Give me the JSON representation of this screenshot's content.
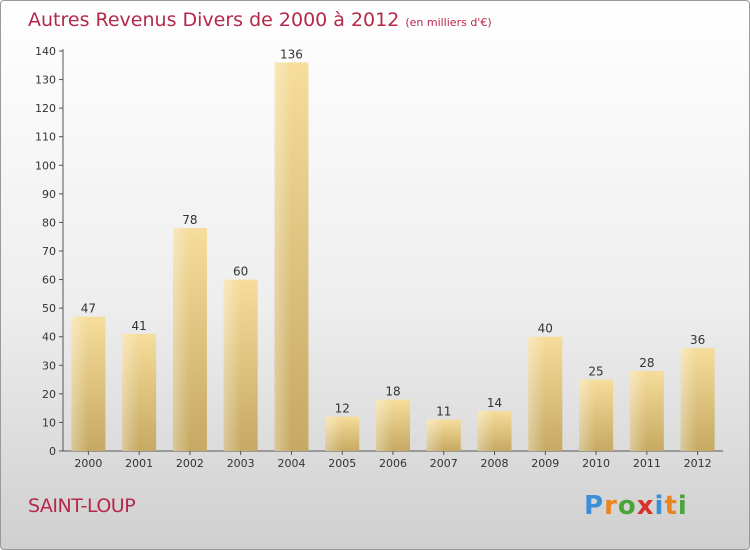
{
  "title": "Autres Revenus Divers de 2000 à 2012",
  "subtitle": "(en milliers d'€)",
  "commune": "SAINT-LOUP",
  "logo": "Proxiti",
  "colors": {
    "title": "#b5284a",
    "bar_light": "#f5dc9a",
    "bar_dark": "#c9ad66",
    "axis": "#555555"
  },
  "chart_data": {
    "type": "bar",
    "categories": [
      "2000",
      "2001",
      "2002",
      "2003",
      "2004",
      "2005",
      "2006",
      "2007",
      "2008",
      "2009",
      "2010",
      "2011",
      "2012"
    ],
    "values": [
      47,
      41,
      78,
      60,
      136,
      12,
      18,
      11,
      14,
      40,
      25,
      28,
      36
    ],
    "ylim": [
      0,
      140
    ],
    "yticks": [
      0,
      10,
      20,
      30,
      40,
      50,
      60,
      70,
      80,
      90,
      100,
      110,
      120,
      130,
      140
    ],
    "grid": false,
    "data_labels": true
  }
}
